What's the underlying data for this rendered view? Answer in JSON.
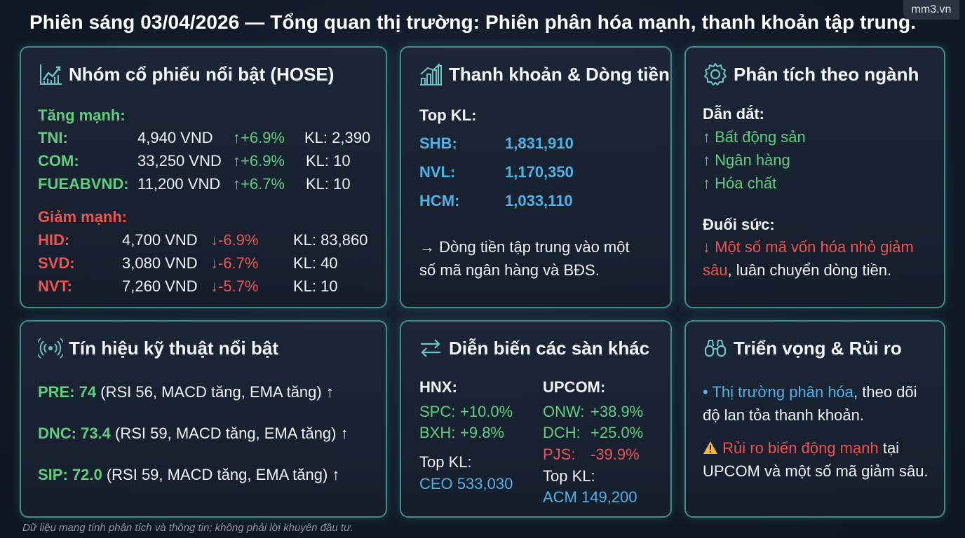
{
  "header": {
    "title": "Phiên sáng 03/04/2026 — Tổng quan thị trường: Phiên phân hóa mạnh, thanh khoản tập trung.",
    "brand": "mm3.vn"
  },
  "hose": {
    "title": "Nhóm cổ phiếu nổi bật (HOSE)",
    "icon": "line-chart-icon",
    "gainers_label": "Tăng mạnh:",
    "gainers": [
      {
        "ticker": "TNI:",
        "price": "4,940 VND",
        "change": "↑+6.9%",
        "volume": "KL: 2,390"
      },
      {
        "ticker": "COM:",
        "price": "33,250 VND",
        "change": "↑+6.9%",
        "volume": "KL: 10"
      },
      {
        "ticker": "FUEABVND:",
        "price": "11,200 VND",
        "change": "↑+6.7%",
        "volume": "KL: 10"
      }
    ],
    "losers_label": "Giảm mạnh:",
    "losers": [
      {
        "ticker": "HID:",
        "price": "4,700 VND",
        "change": "↓-6.9%",
        "volume": "KL: 83,860"
      },
      {
        "ticker": "SVD:",
        "price": "3,080 VND",
        "change": "↓-6.7%",
        "volume": "KL: 40"
      },
      {
        "ticker": "NVT:",
        "price": "7,260 VND",
        "change": "↓-5.7%",
        "volume": "KL: 10"
      }
    ]
  },
  "liquidity": {
    "title": "Thanh khoản & Dòng tiền",
    "icon": "bar-chart-icon",
    "top_label": "Top KL:",
    "top": [
      {
        "ticker": "SHB:",
        "volume": "1,831,910"
      },
      {
        "ticker": "NVL:",
        "volume": "1,170,350"
      },
      {
        "ticker": "HCM:",
        "volume": "1,033,110"
      }
    ],
    "note_line1": "→  Dòng tiền tập trung vào một",
    "note_line2": "số mã ngân hàng và BĐS."
  },
  "sectors": {
    "title": "Phân tích theo ngành",
    "icon": "gear-icon",
    "leading_label": "Dẫn dắt:",
    "leading": [
      "↑ Bất động sản",
      "↑ Ngân hàng",
      "↑ Hóa chất"
    ],
    "weak_label": "Đuối sức:",
    "weak_red_1": "↓ Một số mã vốn hóa nhỏ giảm",
    "weak_red_2": "sâu",
    "weak_rest": ", luân chuyển dòng tiền."
  },
  "signals": {
    "title": "Tín hiệu kỹ thuật nổi bật",
    "icon": "signal-icon",
    "items": [
      {
        "label": "PRE: 74",
        "detail": " (RSI 56, MACD tăng, EMA tăng) ↑"
      },
      {
        "label": "DNC: 73.4",
        "detail": " (RSI 59, MACD tăng, EMA tăng) ↑"
      },
      {
        "label": "SIP: 72.0",
        "detail": " (RSI 59, MACD tăng, EMA tăng) ↑"
      }
    ]
  },
  "exchanges": {
    "title": "Diễn biến các sàn khác",
    "icon": "swap-arrows-icon",
    "hnx": {
      "label": "HNX:",
      "rows": [
        {
          "ticker": "SPC:",
          "change": "+10.0%"
        },
        {
          "ticker": "BXH:",
          "change": "+9.8%"
        }
      ],
      "top_label": "Top KL:",
      "top_value": "CEO 533,030"
    },
    "upcom": {
      "label": "UPCOM:",
      "rows": [
        {
          "ticker": "ONW:",
          "change": "+38.9%",
          "tone": "green"
        },
        {
          "ticker": "DCH:",
          "change": "+25.0%",
          "tone": "green"
        },
        {
          "ticker": "PJS:",
          "change": "-39.9%",
          "tone": "red"
        }
      ],
      "top_label": "Top KL:",
      "top_value": "ACM 149,200"
    }
  },
  "outlook": {
    "title": "Triển vọng & Rủi ro",
    "icon": "binoculars-icon",
    "point1_hl": "• Thị trường phân hóa",
    "point1_rest": ", theo dõi",
    "point1_line2": "độ lan tỏa thanh khoản.",
    "warning_icon": "warning-icon",
    "point2_hl": "Rủi ro biến động mạnh",
    "point2_rest": " tại",
    "point2_line2": "UPCOM và một số mã giảm sâu."
  },
  "footer": "Dữ liệu mang tính phân tích và thông tin; không phải lời khuyên đầu tư.",
  "colors": {
    "up": "#5fcf7e",
    "down": "#ef5350",
    "accent": "#4fb3e6",
    "border": "#3f8f8a"
  }
}
